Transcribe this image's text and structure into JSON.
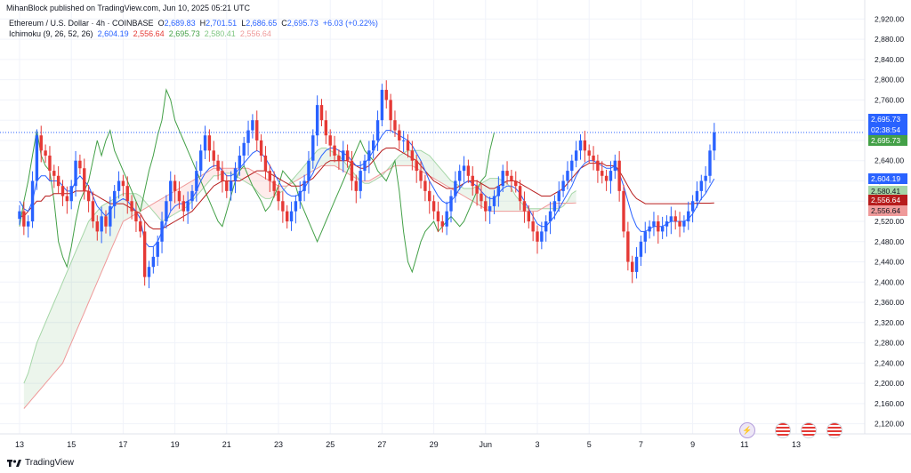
{
  "header": {
    "published": "MihanBlock published on TradingView.com, Jun 10, 2025 05:21 UTC",
    "symbol": "Ethereum / U.S. Dollar · 4h · COINBASE",
    "o_label": "O",
    "o_value": "2,689.83",
    "h_label": "H",
    "h_value": "2,701.51",
    "l_label": "L",
    "l_value": "2,686.65",
    "c_label": "C",
    "c_value": "2,695.73",
    "change": "+6.03 (+0.22%)",
    "indicator": "Ichimoku (9, 26, 52, 26)",
    "ind_values": [
      "2,604.19",
      "2,556.64",
      "2,695.73",
      "2,580.41",
      "2,556.64"
    ]
  },
  "brand": {
    "logo_name": "TradingView",
    "logo_icon": "tradingview-logo-icon"
  },
  "colors": {
    "up": "#2962ff",
    "down": "#e53935",
    "tenkan": "#2962ff",
    "kijun": "#b71c1c",
    "chikou": "#43a047",
    "spanA": "#a5d6a7",
    "spanB": "#ef9a9a",
    "cloud_up": "rgba(67,160,71,0.10)",
    "cloud_down": "rgba(244,67,54,0.10)",
    "last_price": "#2962ff",
    "grid": "#f0f3fa"
  },
  "price_tags": [
    {
      "text": "2,695.73",
      "color": "#2962ff"
    },
    {
      "text": "02:38:54",
      "color": "#2962ff"
    },
    {
      "text": "2,695.73",
      "color": "#43a047"
    },
    {
      "text": "2,604.19",
      "color": "#2962ff"
    },
    {
      "text": "2,580.41",
      "color": "#a5d6a7"
    },
    {
      "text": "2,556.64",
      "color": "#b71c1c"
    },
    {
      "text": "2,556.64",
      "color": "#ef9a9a"
    }
  ],
  "events": [
    {
      "icon": "crypto-event-icon",
      "label": "⚡"
    },
    {
      "icon": "us-flag-icon",
      "label": ""
    },
    {
      "icon": "us-flag-icon",
      "label": ""
    },
    {
      "icon": "us-flag-icon",
      "label": ""
    }
  ],
  "chart_data": {
    "type": "candlestick",
    "title": "",
    "timeframe": "4h",
    "y_range": [
      2100,
      2940
    ],
    "y_ticks": [
      2120,
      2160,
      2200,
      2240,
      2280,
      2320,
      2360,
      2400,
      2440,
      2480,
      2520,
      2560,
      2600,
      2640,
      2680,
      2720,
      2760,
      2800,
      2840,
      2880,
      2920
    ],
    "y_tick_labels": [
      "2,120.00",
      "2,160.00",
      "2,200.00",
      "2,240.00",
      "2,280.00",
      "2,320.00",
      "2,360.00",
      "2,400.00",
      "2,440.00",
      "2,480.00",
      "2,520.00",
      "2,560.00",
      "2,600.00",
      "2,640.00",
      "2,680.00",
      "2,720.00",
      "2,760.00",
      "2,800.00",
      "2,840.00",
      "2,880.00",
      "2,920.00"
    ],
    "x_labels": [
      "13",
      "15",
      "17",
      "19",
      "21",
      "23",
      "25",
      "27",
      "29",
      "Jun",
      "3",
      "5",
      "7",
      "9",
      "11",
      "13"
    ],
    "x_label_bar": [
      0,
      12,
      24,
      36,
      48,
      60,
      72,
      84,
      96,
      108,
      120,
      132,
      144,
      156,
      168,
      180
    ],
    "last_price": 2695.73,
    "closes": [
      2540,
      2510,
      2520,
      2600,
      2690,
      2660,
      2650,
      2620,
      2610,
      2590,
      2570,
      2560,
      2590,
      2640,
      2625,
      2580,
      2560,
      2520,
      2500,
      2530,
      2510,
      2550,
      2580,
      2600,
      2590,
      2560,
      2540,
      2520,
      2500,
      2410,
      2430,
      2450,
      2480,
      2520,
      2560,
      2600,
      2580,
      2560,
      2540,
      2560,
      2580,
      2620,
      2660,
      2690,
      2660,
      2640,
      2620,
      2600,
      2580,
      2600,
      2625,
      2650,
      2675,
      2700,
      2720,
      2680,
      2650,
      2620,
      2600,
      2580,
      2560,
      2540,
      2520,
      2540,
      2560,
      2580,
      2600,
      2640,
      2690,
      2750,
      2720,
      2690,
      2670,
      2650,
      2640,
      2660,
      2640,
      2600,
      2580,
      2620,
      2640,
      2660,
      2680,
      2720,
      2780,
      2760,
      2720,
      2700,
      2680,
      2680,
      2660,
      2640,
      2620,
      2600,
      2580,
      2560,
      2540,
      2520,
      2510,
      2540,
      2570,
      2600,
      2620,
      2630,
      2610,
      2590,
      2575,
      2560,
      2540,
      2550,
      2570,
      2590,
      2620,
      2610,
      2600,
      2590,
      2560,
      2540,
      2520,
      2500,
      2480,
      2500,
      2520,
      2540,
      2560,
      2580,
      2600,
      2620,
      2640,
      2660,
      2680,
      2660,
      2650,
      2640,
      2620,
      2610,
      2600,
      2620,
      2640,
      2580,
      2500,
      2440,
      2420,
      2450,
      2480,
      2500,
      2510,
      2520,
      2500,
      2510,
      2520,
      2530,
      2520,
      2510,
      2520,
      2540,
      2560,
      2580,
      2600,
      2610,
      2660,
      2695.73
    ],
    "series": [
      {
        "name": "Tenkan",
        "values": [
          2560,
          2545,
          2540,
          2560,
          2600,
          2610,
          2610,
          2600,
          2600,
          2600,
          2590,
          2580,
          2580,
          2600,
          2610,
          2600,
          2590,
          2570,
          2550,
          2540,
          2530,
          2540,
          2555,
          2560,
          2565,
          2560,
          2550,
          2540,
          2525,
          2480,
          2470,
          2470,
          2480,
          2500,
          2520,
          2540,
          2550,
          2555,
          2555,
          2560,
          2565,
          2580,
          2600,
          2615,
          2625,
          2630,
          2630,
          2620,
          2610,
          2610,
          2615,
          2625,
          2635,
          2645,
          2655,
          2660,
          2655,
          2645,
          2630,
          2615,
          2600,
          2585,
          2575,
          2570,
          2570,
          2575,
          2585,
          2600,
          2615,
          2635,
          2650,
          2660,
          2665,
          2665,
          2660,
          2655,
          2650,
          2640,
          2630,
          2630,
          2635,
          2645,
          2660,
          2675,
          2690,
          2700,
          2700,
          2695,
          2690,
          2685,
          2680,
          2670,
          2655,
          2640,
          2620,
          2600,
          2585,
          2570,
          2560,
          2555,
          2560,
          2570,
          2585,
          2595,
          2600,
          2595,
          2590,
          2580,
          2570,
          2565,
          2565,
          2575,
          2585,
          2590,
          2590,
          2585,
          2575,
          2560,
          2545,
          2530,
          2515,
          2510,
          2510,
          2520,
          2530,
          2545,
          2560,
          2575,
          2590,
          2610,
          2625,
          2635,
          2640,
          2640,
          2635,
          2630,
          2625,
          2625,
          2630,
          2615,
          2590,
          2560,
          2530,
          2510,
          2500,
          2500,
          2505,
          2510,
          2510,
          2510,
          2515,
          2520,
          2520,
          2520,
          2520,
          2525,
          2535,
          2550,
          2565,
          2575,
          2590,
          2604.19
        ]
      },
      {
        "name": "Kijun",
        "values": [
          2530,
          2530,
          2540,
          2550,
          2560,
          2560,
          2570,
          2570,
          2575,
          2575,
          2575,
          2575,
          2575,
          2580,
          2580,
          2580,
          2580,
          2575,
          2570,
          2565,
          2560,
          2555,
          2555,
          2555,
          2555,
          2550,
          2545,
          2540,
          2535,
          2520,
          2510,
          2505,
          2505,
          2505,
          2510,
          2515,
          2520,
          2525,
          2530,
          2535,
          2540,
          2550,
          2560,
          2570,
          2580,
          2590,
          2595,
          2600,
          2600,
          2600,
          2600,
          2600,
          2605,
          2610,
          2615,
          2620,
          2620,
          2620,
          2615,
          2610,
          2605,
          2600,
          2595,
          2590,
          2590,
          2590,
          2595,
          2600,
          2605,
          2615,
          2625,
          2635,
          2640,
          2640,
          2640,
          2640,
          2640,
          2635,
          2630,
          2625,
          2625,
          2630,
          2640,
          2650,
          2660,
          2665,
          2665,
          2665,
          2660,
          2655,
          2650,
          2645,
          2640,
          2630,
          2620,
          2610,
          2600,
          2595,
          2590,
          2585,
          2585,
          2585,
          2590,
          2595,
          2600,
          2600,
          2600,
          2595,
          2590,
          2585,
          2585,
          2590,
          2595,
          2600,
          2600,
          2600,
          2595,
          2590,
          2585,
          2580,
          2575,
          2570,
          2570,
          2570,
          2575,
          2580,
          2585,
          2595,
          2605,
          2615,
          2625,
          2630,
          2635,
          2635,
          2635,
          2635,
          2630,
          2630,
          2630,
          2620,
          2605,
          2590,
          2575,
          2565,
          2560,
          2555,
          2555,
          2555,
          2555,
          2555,
          2555,
          2555,
          2555,
          2555,
          2555,
          2555,
          2555,
          2556,
          2556,
          2556,
          2556,
          2556.64
        ]
      },
      {
        "name": "Chikou",
        "values": [
          2510,
          2560,
          2600,
          2650,
          2700,
          2650,
          2630,
          2620,
          2560,
          2480,
          2450,
          2430,
          2470,
          2520,
          2560,
          2580,
          2600,
          2640,
          2680,
          2650,
          2680,
          2700,
          2660,
          2640,
          2620,
          2600,
          2580,
          2560,
          2540,
          2580,
          2620,
          2650,
          2690,
          2720,
          2780,
          2760,
          2720,
          2700,
          2680,
          2660,
          2640,
          2620,
          2600,
          2580,
          2560,
          2540,
          2520,
          2510,
          2540,
          2570,
          2600,
          2620,
          2630,
          2610,
          2590,
          2575,
          2560,
          2540,
          2550,
          2570,
          2590,
          2620,
          2610,
          2600,
          2590,
          2560,
          2540,
          2520,
          2500,
          2480,
          2500,
          2520,
          2540,
          2560,
          2580,
          2600,
          2620,
          2640,
          2660,
          2680,
          2660,
          2650,
          2640,
          2620,
          2610,
          2600,
          2620,
          2640,
          2580,
          2500,
          2440,
          2420,
          2450,
          2480,
          2500,
          2510,
          2520,
          2500,
          2510,
          2520,
          2530,
          2520,
          2510,
          2520,
          2540,
          2560,
          2580,
          2600,
          2610,
          2660,
          2695.73
        ]
      },
      {
        "name": "Senkou A",
        "values": [
          2200,
          2220,
          2250,
          2280,
          2300,
          2320,
          2340,
          2360,
          2380,
          2400,
          2420,
          2440,
          2460,
          2480,
          2500,
          2520,
          2530,
          2540,
          2550,
          2555,
          2560,
          2565,
          2570,
          2575,
          2575,
          2575,
          2575,
          2570,
          2560,
          2550,
          2540,
          2530,
          2520,
          2525,
          2530,
          2535,
          2540,
          2545,
          2550,
          2560,
          2570,
          2580,
          2590,
          2600,
          2610,
          2610,
          2615,
          2615,
          2615,
          2610,
          2605,
          2600,
          2595,
          2590,
          2580,
          2570,
          2565,
          2565,
          2570,
          2575,
          2580,
          2590,
          2600,
          2610,
          2620,
          2630,
          2640,
          2650,
          2660,
          2665,
          2665,
          2660,
          2655,
          2650,
          2640,
          2630,
          2620,
          2610,
          2600,
          2595,
          2595,
          2600,
          2605,
          2610,
          2620,
          2630,
          2640,
          2650,
          2655,
          2660,
          2660,
          2660,
          2660,
          2655,
          2650,
          2640,
          2630,
          2620,
          2610,
          2600,
          2595,
          2590,
          2585,
          2585,
          2585,
          2590,
          2595,
          2600,
          2605,
          2605,
          2605,
          2600,
          2595,
          2585,
          2570,
          2560,
          2550,
          2545,
          2545,
          2545,
          2545,
          2545,
          2545,
          2545,
          2545,
          2550,
          2560,
          2575,
          2580.41
        ]
      },
      {
        "name": "Senkou B",
        "values": [
          2150,
          2160,
          2170,
          2180,
          2190,
          2200,
          2210,
          2220,
          2230,
          2240,
          2260,
          2280,
          2300,
          2320,
          2340,
          2360,
          2380,
          2400,
          2420,
          2440,
          2460,
          2480,
          2500,
          2520,
          2525,
          2530,
          2535,
          2540,
          2545,
          2550,
          2555,
          2560,
          2565,
          2570,
          2575,
          2580,
          2585,
          2590,
          2595,
          2600,
          2605,
          2610,
          2615,
          2620,
          2625,
          2625,
          2625,
          2625,
          2625,
          2625,
          2625,
          2625,
          2625,
          2620,
          2615,
          2610,
          2605,
          2600,
          2595,
          2590,
          2590,
          2590,
          2595,
          2600,
          2605,
          2610,
          2615,
          2620,
          2625,
          2630,
          2630,
          2630,
          2630,
          2625,
          2620,
          2615,
          2610,
          2605,
          2600,
          2600,
          2600,
          2605,
          2610,
          2615,
          2620,
          2625,
          2630,
          2630,
          2630,
          2630,
          2630,
          2625,
          2620,
          2615,
          2610,
          2605,
          2600,
          2595,
          2590,
          2585,
          2580,
          2575,
          2570,
          2565,
          2560,
          2555,
          2550,
          2545,
          2540,
          2540,
          2540,
          2540,
          2540,
          2540,
          2540,
          2540,
          2540,
          2540,
          2540,
          2540,
          2545,
          2550,
          2555,
          2556,
          2556,
          2556,
          2556,
          2556,
          2556.64
        ]
      }
    ]
  }
}
